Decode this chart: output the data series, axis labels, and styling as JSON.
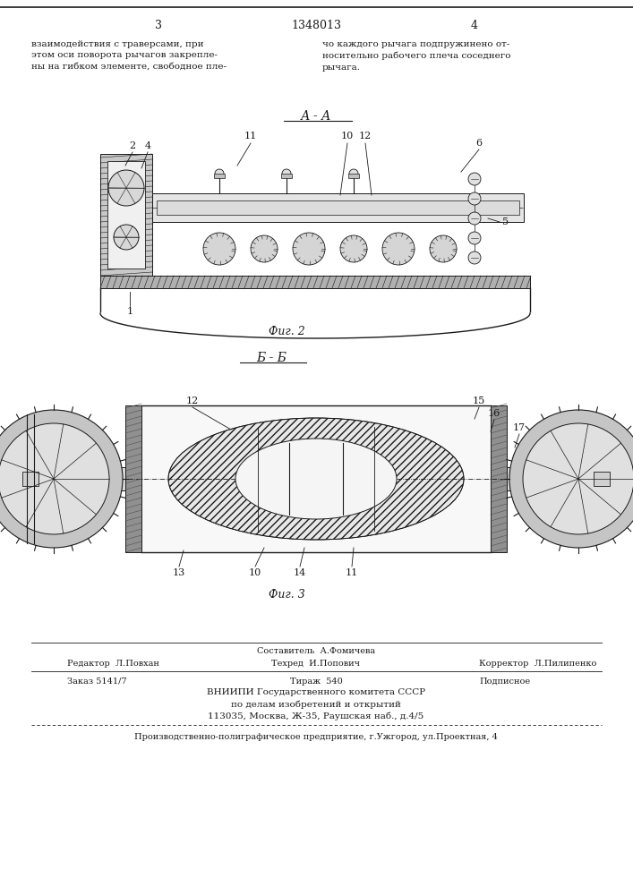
{
  "bg_color": "#ffffff",
  "page_width": 7.07,
  "page_height": 10.0,
  "patent_number": "1348013",
  "page_left": "3",
  "page_right": "4",
  "text_left": "взаимодействия с траверсами, при\nэтом оси поворота рычагов закрепле-\nны на гибком элементе, свободное пле-",
  "text_right": "чо каждого рычага подпружинено от-\nносительно рабочего плеча соседнего\nрычага.",
  "fig2_label": "А - А",
  "fig2_caption": "Фиг. 2",
  "fig3_label": "Б - Б",
  "fig3_caption": "Фиг. 3",
  "bottom_composer": "Составитель  А.Фомичева",
  "bottom_editor": "Редактор  Л.Повхан",
  "bottom_tech": "Техред  И.Попович",
  "bottom_corrector": "Корректор  Л.Пилипенко",
  "bottom_order": "Заказ 5141/7",
  "bottom_circulation": "Тираж  540",
  "bottom_signed": "Подписное",
  "bottom_org1": "ВНИИПИ Государственного комитета СССР",
  "bottom_org2": "по делам изобретений и открытий",
  "bottom_org3": "113035, Москва, Ж-35, Раушская наб., д.4/5",
  "bottom_prod": "Производственно-полиграфическое предприятие, г.Ужгород, ул.Проектная, 4"
}
